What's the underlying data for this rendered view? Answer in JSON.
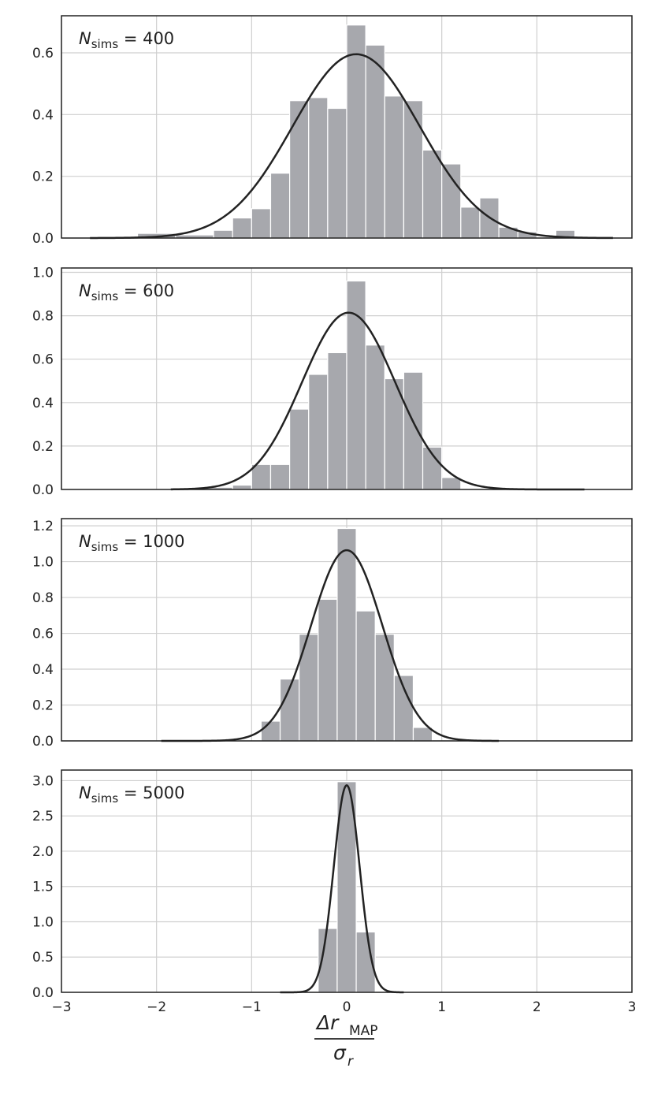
{
  "chart_data": [
    {
      "type": "bar",
      "panel": "N_sims = 400",
      "annotation": {
        "symbol": "N",
        "subscript": "sims",
        "text": " = 400"
      },
      "xlim": [
        -3,
        3
      ],
      "ylim": [
        0,
        0.72
      ],
      "yticks": [
        "0.0",
        "0.2",
        "0.4",
        "0.6"
      ],
      "ytick_values": [
        0,
        0.2,
        0.4,
        0.6
      ],
      "bin_edges": [
        -2.2,
        -1.8,
        -1.4,
        -1.2,
        -1.0,
        -0.8,
        -0.6,
        -0.4,
        -0.2,
        0.0,
        0.2,
        0.4,
        0.6,
        0.8,
        1.0,
        1.2,
        1.4,
        1.6,
        1.8,
        2.0,
        2.2,
        2.4
      ],
      "bin_heights": [
        0.015,
        0.01,
        0.025,
        0.065,
        0.095,
        0.21,
        0.445,
        0.455,
        0.42,
        0.69,
        0.625,
        0.46,
        0.445,
        0.285,
        0.24,
        0.1,
        0.13,
        0.035,
        0.02,
        0.0,
        0.025
      ],
      "fit": {
        "mu": 0.1,
        "sigma": 0.67,
        "range": [
          -2.7,
          2.8
        ]
      }
    },
    {
      "type": "bar",
      "panel": "N_sims = 600",
      "annotation": {
        "symbol": "N",
        "subscript": "sims",
        "text": " = 600"
      },
      "xlim": [
        -3,
        3
      ],
      "ylim": [
        0,
        1.02
      ],
      "yticks": [
        "0.0",
        "0.2",
        "0.4",
        "0.6",
        "0.8",
        "1.0"
      ],
      "ytick_values": [
        0,
        0.2,
        0.4,
        0.6,
        0.8,
        1.0
      ],
      "bin_edges": [
        -1.6,
        -1.2,
        -1.0,
        -0.8,
        -0.6,
        -0.4,
        -0.2,
        0.0,
        0.2,
        0.4,
        0.6,
        0.8,
        1.0,
        1.2
      ],
      "bin_heights": [
        0.01,
        0.02,
        0.115,
        0.115,
        0.37,
        0.53,
        0.63,
        0.96,
        0.665,
        0.51,
        0.54,
        0.195,
        0.055
      ],
      "fit": {
        "mu": 0.02,
        "sigma": 0.49,
        "range": [
          -1.85,
          2.5
        ]
      }
    },
    {
      "type": "bar",
      "panel": "N_sims = 1000",
      "annotation": {
        "symbol": "N",
        "subscript": "sims",
        "text": " = 1000"
      },
      "xlim": [
        -3,
        3
      ],
      "ylim": [
        0,
        1.24
      ],
      "yticks": [
        "0.0",
        "0.2",
        "0.4",
        "0.6",
        "0.8",
        "1.0",
        "1.2"
      ],
      "ytick_values": [
        0,
        0.2,
        0.4,
        0.6,
        0.8,
        1.0,
        1.2
      ],
      "bin_edges": [
        -0.9,
        -0.7,
        -0.5,
        -0.3,
        -0.1,
        0.1,
        0.3,
        0.5,
        0.7,
        0.9
      ],
      "bin_heights": [
        0.11,
        0.345,
        0.595,
        0.79,
        1.185,
        0.725,
        0.595,
        0.365,
        0.075
      ],
      "fit": {
        "mu": 0.0,
        "sigma": 0.375,
        "range": [
          -1.95,
          1.6
        ]
      }
    },
    {
      "type": "bar",
      "panel": "N_sims = 5000",
      "annotation": {
        "symbol": "N",
        "subscript": "sims",
        "text": " = 5000"
      },
      "xlim": [
        -3,
        3
      ],
      "ylim": [
        0,
        3.15
      ],
      "yticks": [
        "0.0",
        "0.5",
        "1.0",
        "1.5",
        "2.0",
        "2.5",
        "3.0"
      ],
      "ytick_values": [
        0,
        0.5,
        1.0,
        1.5,
        2.0,
        2.5,
        3.0
      ],
      "bin_edges": [
        -0.3,
        -0.1,
        0.1,
        0.3
      ],
      "bin_heights": [
        0.905,
        2.985,
        0.855
      ],
      "fit": {
        "mu": 0.0,
        "sigma": 0.136,
        "range": [
          -0.7,
          0.6
        ]
      }
    }
  ],
  "x_axis": {
    "ticks": [
      "−3",
      "−2",
      "−1",
      "0",
      "1",
      "2",
      "3"
    ],
    "tick_values": [
      -3,
      -2,
      -1,
      0,
      1,
      2,
      3
    ],
    "label_numerator": "Δr",
    "label_numerator_sub": "MAP",
    "label_denominator": "σ",
    "label_denominator_sub": "r"
  },
  "colors": {
    "bars": "#a7a8ad",
    "fit_line": "#222222",
    "grid": "#cfcfcf"
  }
}
